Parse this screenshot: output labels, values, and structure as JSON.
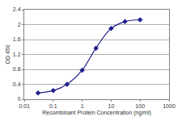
{
  "chart_data": {
    "type": "line",
    "x_label": "Recombinant Protein Concentration (ng/ml)",
    "y_label": "OD 450",
    "x": [
      0.03,
      0.1,
      0.3,
      1,
      3,
      10,
      30,
      100
    ],
    "values": [
      0.17,
      0.23,
      0.4,
      0.78,
      1.37,
      1.9,
      2.08,
      2.13
    ],
    "color": "#1f1f8c",
    "marker": "diamond",
    "line_style": "solid",
    "log": "x",
    "xlim": [
      0.01,
      1000
    ],
    "xticks": [
      0.01,
      0.1,
      1,
      10,
      100,
      1000
    ],
    "ylim": [
      0,
      2.4
    ],
    "yticks": [
      0,
      0.4,
      0.8,
      1.2,
      1.6,
      2,
      2.4
    ],
    "grid": true
  }
}
